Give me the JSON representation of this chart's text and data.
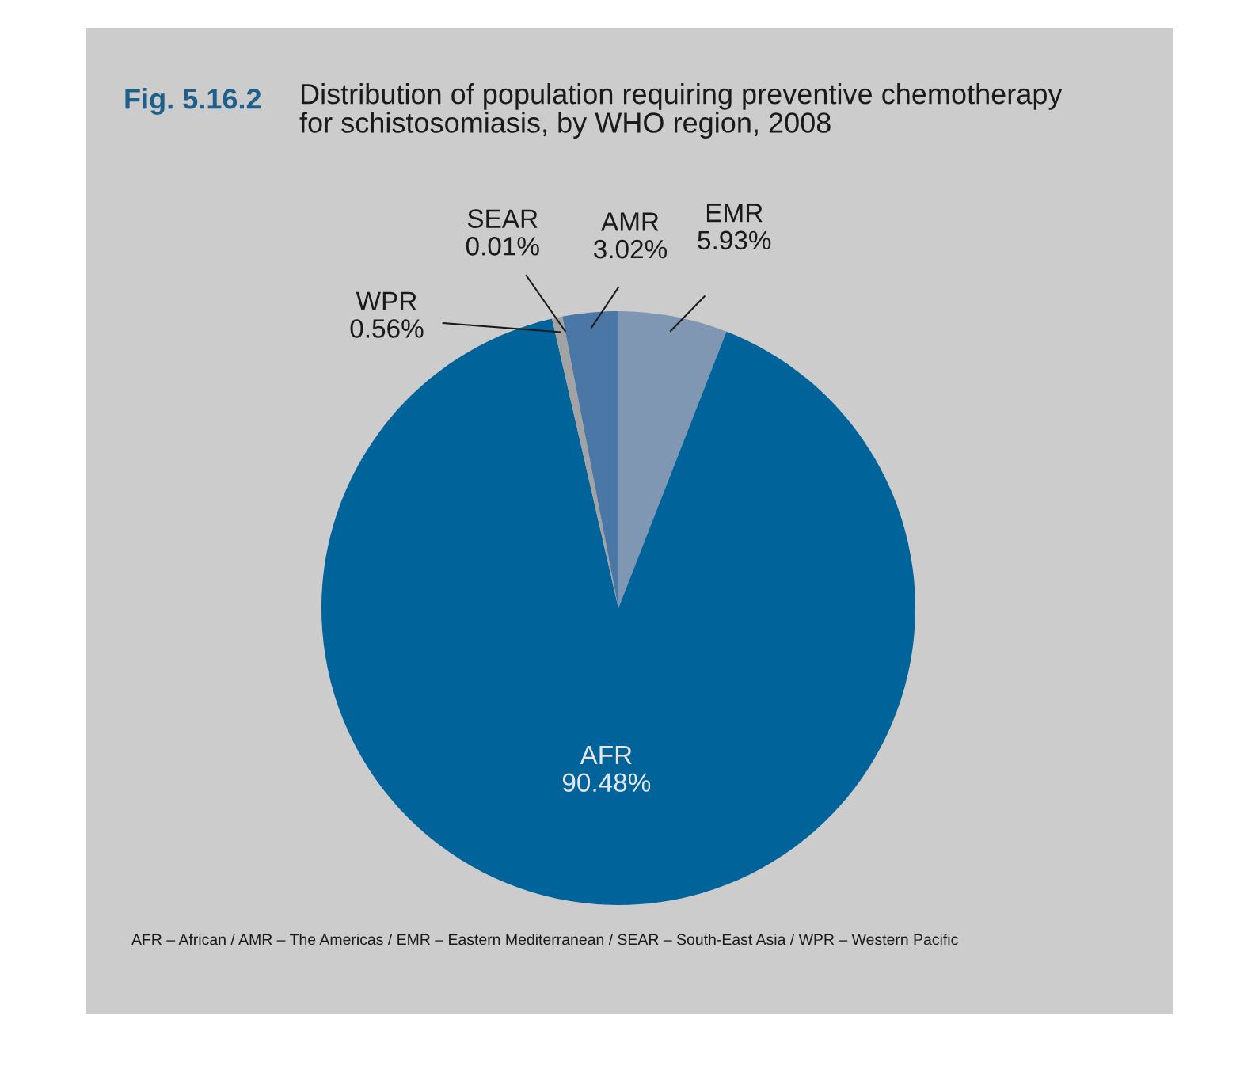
{
  "chart_data": {
    "type": "pie",
    "title": "Fig. 5.16.2",
    "subtitle": "Distribution of population requiring preventive chemotherapy\nfor schistosomiasis, by WHO region, 2008",
    "categories": [
      "EMR",
      "AFR",
      "WPR",
      "SEAR",
      "AMR"
    ],
    "values": [
      5.93,
      90.48,
      0.56,
      0.01,
      3.02
    ],
    "value_labels": [
      "5.93%",
      "90.48%",
      "0.56%",
      "0.01%",
      "3.02%"
    ],
    "colors": [
      "#7f97b3",
      "#00639a",
      "#a3a3a3",
      "#8aa0b8",
      "#4a77a5"
    ],
    "annotations": [
      "AFR – African / AMR – The Americas / EMR – Eastern Mediterranean / SEAR – South-East Asia / WPR – Western Pacific"
    ]
  }
}
